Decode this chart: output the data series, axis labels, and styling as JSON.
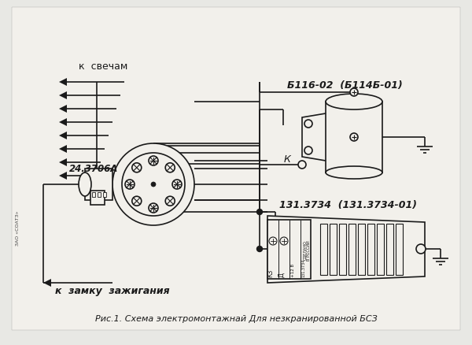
{
  "bg_color": "#e8e8e4",
  "paper_color": "#f2f0eb",
  "line_color": "#1a1a1a",
  "title": "Рис.1. Схема электромонтажнай Для незкранированной БСЗ",
  "label_sparks": "к  свечам",
  "label_ignition": "к  замку  зажигания",
  "label_distributor": "24.3706А",
  "label_coil": "Б116-02  (Б114Б-01)",
  "label_module": "131.3734  (131.3734-01)",
  "label_k": "К",
  "label_zao": "ЗАО «СОАТЗ»"
}
